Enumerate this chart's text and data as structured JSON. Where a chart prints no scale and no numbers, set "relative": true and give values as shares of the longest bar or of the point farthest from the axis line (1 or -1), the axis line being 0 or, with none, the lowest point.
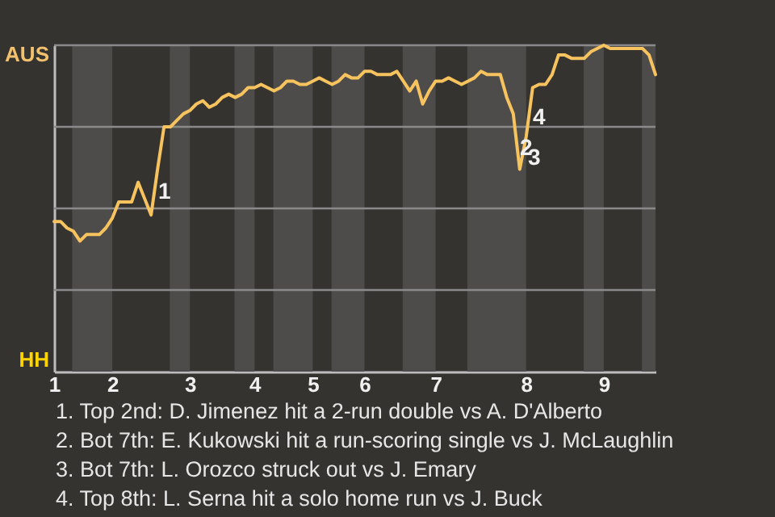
{
  "chart_data": {
    "type": "line",
    "relative": true,
    "categories": [
      "1",
      null,
      null,
      null,
      null,
      null,
      null,
      null,
      null,
      "2",
      null,
      null,
      null,
      null,
      null,
      null,
      null,
      null,
      null,
      null,
      null,
      "3",
      null,
      null,
      null,
      null,
      null,
      null,
      null,
      null,
      null,
      "4",
      null,
      null,
      null,
      null,
      null,
      null,
      null,
      null,
      "5",
      null,
      null,
      null,
      null,
      null,
      null,
      null,
      "6",
      null,
      null,
      null,
      null,
      null,
      null,
      null,
      null,
      null,
      null,
      "7",
      null,
      null,
      null,
      null,
      null,
      null,
      null,
      null,
      null,
      null,
      null,
      null,
      null,
      "8",
      null,
      null,
      null,
      null,
      null,
      null,
      null,
      null,
      null,
      null,
      null,
      "9",
      null,
      null,
      null,
      null,
      null,
      null,
      null,
      null
    ],
    "series": [
      {
        "color": "#f7c35f",
        "values": [
          0.46,
          0.46,
          0.44,
          0.43,
          0.4,
          0.42,
          0.42,
          0.42,
          0.44,
          0.47,
          0.52,
          0.52,
          0.52,
          0.58,
          0.53,
          0.48,
          0.62,
          0.75,
          0.75,
          0.77,
          0.79,
          0.8,
          0.82,
          0.83,
          0.81,
          0.82,
          0.84,
          0.85,
          0.84,
          0.85,
          0.87,
          0.87,
          0.88,
          0.87,
          0.86,
          0.87,
          0.89,
          0.89,
          0.88,
          0.88,
          0.89,
          0.9,
          0.89,
          0.88,
          0.89,
          0.91,
          0.9,
          0.9,
          0.92,
          0.92,
          0.91,
          0.91,
          0.91,
          0.92,
          0.89,
          0.86,
          0.89,
          0.82,
          0.86,
          0.89,
          0.89,
          0.9,
          0.89,
          0.88,
          0.89,
          0.9,
          0.92,
          0.91,
          0.91,
          0.91,
          0.84,
          0.79,
          0.62,
          0.72,
          0.87,
          0.88,
          0.88,
          0.91,
          0.97,
          0.97,
          0.96,
          0.96,
          0.96,
          0.98,
          0.99,
          1,
          0.99,
          0.99,
          0.99,
          0.99,
          0.99,
          0.99,
          0.97,
          0.91
        ]
      }
    ],
    "annotations": [
      "AUS",
      "HH",
      "1",
      "2",
      "3",
      "4",
      "1. Top 2nd: D. Jimenez hit a 2-run double vs A. D'Alberto",
      "2. Bot 7th: E. Kukowski hit a run-scoring single vs J. McLaughlin",
      "3. Bot 7th: L. Orozco struck out vs J. Emary",
      "4. Top 8th: L. Serna hit a solo home run vs J. Buck"
    ]
  }
}
